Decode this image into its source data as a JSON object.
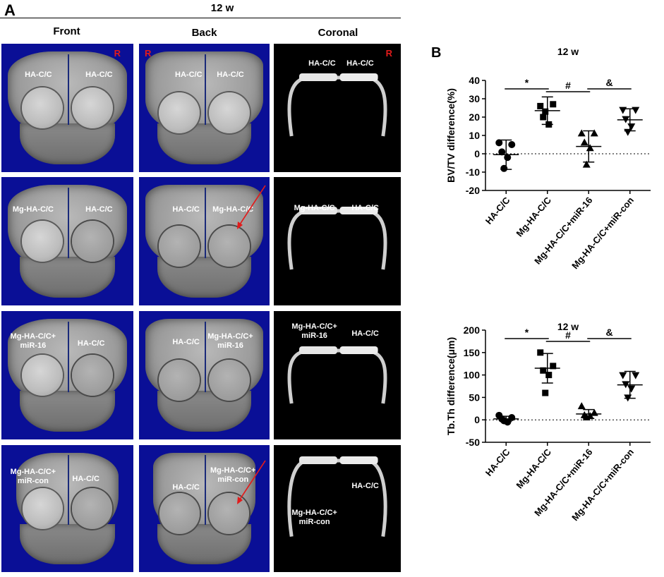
{
  "panel_a": {
    "letter": "A",
    "title": "12 w",
    "col_headers": [
      "Front",
      "Back",
      "Coronal"
    ],
    "orientation_mark": "R",
    "rows": [
      {
        "front": [
          "HA-C/C",
          "HA-C/C"
        ],
        "back": [
          "HA-C/C",
          "HA-C/C"
        ],
        "coronal": [
          "HA-C/C",
          "HA-C/C"
        ]
      },
      {
        "front": [
          "Mg-HA-C/C",
          "HA-C/C"
        ],
        "back": [
          "HA-C/C",
          "Mg-HA-C/C"
        ],
        "coronal": [
          "Mg-HA-C/C",
          "HA-C/C"
        ]
      },
      {
        "front": [
          "Mg-HA-C/C+\nmiR-16",
          "HA-C/C"
        ],
        "back": [
          "HA-C/C",
          "Mg-HA-C/C+\nmiR-16"
        ],
        "coronal": [
          "Mg-HA-C/C+\nmiR-16",
          "HA-C/C"
        ]
      },
      {
        "front": [
          "Mg-HA-C/C+\nmiR-con",
          "HA-C/C"
        ],
        "back": [
          "HA-C/C",
          "Mg-HA-C/C+\nmiR-con"
        ],
        "coronal": [
          "Mg-HA-C/C+\nmiR-con",
          "HA-C/C"
        ]
      }
    ],
    "colors": {
      "ct_background": "#0a0f96",
      "arrow": "#e21b1b"
    }
  },
  "panel_b": {
    "letter": "B"
  },
  "chart_data": [
    {
      "type": "scatter",
      "title": "12 w",
      "ylabel": "BV/TV difference(%)",
      "ylim": [
        -20,
        40
      ],
      "yticks": [
        -20,
        -10,
        0,
        10,
        20,
        30,
        40
      ],
      "categories": [
        "HA-C/C",
        "Mg-HA-C/C",
        "Mg-HA-C/C+miR-16",
        "Mg-HA-C/C+miR-con"
      ],
      "markers": [
        "circle",
        "square",
        "triangle-up",
        "triangle-down"
      ],
      "points": [
        [
          6,
          5,
          1,
          -2,
          -8
        ],
        [
          26,
          27,
          20,
          16,
          23
        ],
        [
          11,
          11,
          6,
          3,
          -6
        ],
        [
          24,
          24,
          19,
          15,
          12
        ]
      ],
      "mean": [
        -0.5,
        23.5,
        4.0,
        18.5
      ],
      "sd": [
        8,
        7.5,
        8.5,
        6
      ],
      "zero_line": "dotted",
      "significance": [
        {
          "from": 0,
          "to": 1,
          "label": "*"
        },
        {
          "from": 1,
          "to": 2,
          "label": "#"
        },
        {
          "from": 2,
          "to": 3,
          "label": "&"
        }
      ]
    },
    {
      "type": "scatter",
      "title": "12 w",
      "ylabel": "Tb.Th difference(μm)",
      "ylim": [
        -50,
        200
      ],
      "yticks": [
        -50,
        0,
        50,
        100,
        150,
        200
      ],
      "categories": [
        "HA-C/C",
        "Mg-HA-C/C",
        "Mg-HA-C/C+miR-16",
        "Mg-HA-C/C+miR-con"
      ],
      "markers": [
        "circle",
        "square",
        "triangle-up",
        "triangle-down"
      ],
      "points": [
        [
          10,
          5,
          2,
          -5,
          -2
        ],
        [
          150,
          120,
          110,
          100,
          60
        ],
        [
          30,
          15,
          10,
          8,
          5
        ],
        [
          100,
          100,
          80,
          70,
          50
        ]
      ],
      "mean": [
        2,
        115,
        13,
        78
      ],
      "sd": [
        6,
        33,
        10,
        30
      ],
      "zero_line": "dotted",
      "significance": [
        {
          "from": 0,
          "to": 1,
          "label": "*"
        },
        {
          "from": 1,
          "to": 2,
          "label": "#"
        },
        {
          "from": 2,
          "to": 3,
          "label": "&"
        }
      ]
    }
  ]
}
